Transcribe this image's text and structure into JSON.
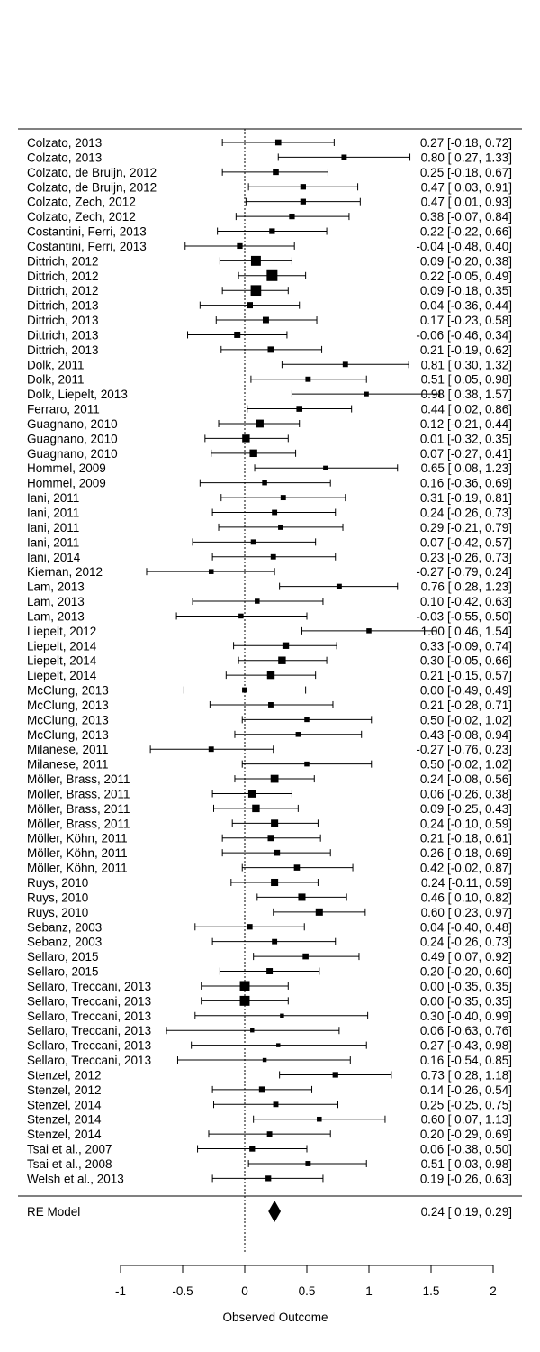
{
  "chart_data": {
    "type": "forest",
    "xlabel": "Observed Outcome",
    "x_ticks": [
      -1,
      -0.5,
      0,
      0.5,
      1,
      1.5,
      2
    ],
    "x_tick_labels": [
      "-1",
      "-0.5",
      "0",
      "0.5",
      "1",
      "1.5",
      "2"
    ],
    "reference_line": 0,
    "studies": [
      {
        "label": "Colzato, 2013",
        "est": 0.27,
        "lo": -0.18,
        "hi": 0.72,
        "ci_text": "0.27 [-0.18, 0.72]",
        "weight": 1.0
      },
      {
        "label": "Colzato, 2013",
        "est": 0.8,
        "lo": 0.27,
        "hi": 1.33,
        "ci_text": "0.80 [ 0.27, 1.33]",
        "weight": 0.8
      },
      {
        "label": "Colzato, de Bruijn, 2012",
        "est": 0.25,
        "lo": -0.18,
        "hi": 0.67,
        "ci_text": "0.25 [-0.18, 0.67]",
        "weight": 1.0
      },
      {
        "label": "Colzato, de Bruijn, 2012",
        "est": 0.47,
        "lo": 0.03,
        "hi": 0.91,
        "ci_text": "0.47 [ 0.03, 0.91]",
        "weight": 0.9
      },
      {
        "label": "Colzato, Zech, 2012",
        "est": 0.47,
        "lo": 0.01,
        "hi": 0.93,
        "ci_text": "0.47 [ 0.01, 0.93]",
        "weight": 0.9
      },
      {
        "label": "Colzato, Zech, 2012",
        "est": 0.38,
        "lo": -0.07,
        "hi": 0.84,
        "ci_text": "0.38 [-0.07, 0.84]",
        "weight": 0.9
      },
      {
        "label": "Costantini, Ferri, 2013",
        "est": 0.22,
        "lo": -0.22,
        "hi": 0.66,
        "ci_text": "0.22 [-0.22, 0.66]",
        "weight": 0.9
      },
      {
        "label": "Costantini, Ferri, 2013",
        "est": -0.04,
        "lo": -0.48,
        "hi": 0.4,
        "ci_text": "-0.04 [-0.48, 0.40]",
        "weight": 0.9
      },
      {
        "label": "Dittrich, 2012",
        "est": 0.09,
        "lo": -0.2,
        "hi": 0.38,
        "ci_text": "0.09 [-0.20, 0.38]",
        "weight": 2.2
      },
      {
        "label": "Dittrich, 2012",
        "est": 0.22,
        "lo": -0.05,
        "hi": 0.49,
        "ci_text": "0.22 [-0.05, 0.49]",
        "weight": 2.5
      },
      {
        "label": "Dittrich, 2012",
        "est": 0.09,
        "lo": -0.18,
        "hi": 0.35,
        "ci_text": "0.09 [-0.18, 0.35]",
        "weight": 2.4
      },
      {
        "label": "Dittrich, 2013",
        "est": 0.04,
        "lo": -0.36,
        "hi": 0.44,
        "ci_text": "0.04 [-0.36, 0.44]",
        "weight": 1.1
      },
      {
        "label": "Dittrich, 2013",
        "est": 0.17,
        "lo": -0.23,
        "hi": 0.58,
        "ci_text": "0.17 [-0.23, 0.58]",
        "weight": 1.1
      },
      {
        "label": "Dittrich, 2013",
        "est": -0.06,
        "lo": -0.46,
        "hi": 0.34,
        "ci_text": "-0.06 [-0.46, 0.34]",
        "weight": 1.1
      },
      {
        "label": "Dittrich, 2013",
        "est": 0.21,
        "lo": -0.19,
        "hi": 0.62,
        "ci_text": "0.21 [-0.19, 0.62]",
        "weight": 1.1
      },
      {
        "label": "Dolk, 2011",
        "est": 0.81,
        "lo": 0.3,
        "hi": 1.32,
        "ci_text": "0.81 [ 0.30, 1.32]",
        "weight": 0.8
      },
      {
        "label": "Dolk, 2011",
        "est": 0.51,
        "lo": 0.05,
        "hi": 0.98,
        "ci_text": "0.51 [ 0.05, 0.98]",
        "weight": 0.8
      },
      {
        "label": "Dolk, Liepelt, 2013",
        "est": 0.98,
        "lo": 0.38,
        "hi": 1.57,
        "ci_text": "0.98 [ 0.38, 1.57]",
        "weight": 0.6
      },
      {
        "label": "Ferraro, 2011",
        "est": 0.44,
        "lo": 0.02,
        "hi": 0.86,
        "ci_text": "0.44 [ 0.02, 0.86]",
        "weight": 1.0
      },
      {
        "label": "Guagnano, 2010",
        "est": 0.12,
        "lo": -0.21,
        "hi": 0.44,
        "ci_text": "0.12 [-0.21, 0.44]",
        "weight": 1.6
      },
      {
        "label": "Guagnano, 2010",
        "est": 0.01,
        "lo": -0.32,
        "hi": 0.35,
        "ci_text": "0.01 [-0.32, 0.35]",
        "weight": 1.5
      },
      {
        "label": "Guagnano, 2010",
        "est": 0.07,
        "lo": -0.27,
        "hi": 0.41,
        "ci_text": "0.07 [-0.27, 0.41]",
        "weight": 1.5
      },
      {
        "label": "Hommel, 2009",
        "est": 0.65,
        "lo": 0.08,
        "hi": 1.23,
        "ci_text": "0.65 [ 0.08, 1.23]",
        "weight": 0.6
      },
      {
        "label": "Hommel, 2009",
        "est": 0.16,
        "lo": -0.36,
        "hi": 0.69,
        "ci_text": "0.16 [-0.36, 0.69]",
        "weight": 0.7
      },
      {
        "label": "Iani, 2011",
        "est": 0.31,
        "lo": -0.19,
        "hi": 0.81,
        "ci_text": "0.31 [-0.19, 0.81]",
        "weight": 0.8
      },
      {
        "label": "Iani, 2011",
        "est": 0.24,
        "lo": -0.26,
        "hi": 0.73,
        "ci_text": "0.24 [-0.26, 0.73]",
        "weight": 0.8
      },
      {
        "label": "Iani, 2011",
        "est": 0.29,
        "lo": -0.21,
        "hi": 0.79,
        "ci_text": "0.29 [-0.21, 0.79]",
        "weight": 0.8
      },
      {
        "label": "Iani, 2011",
        "est": 0.07,
        "lo": -0.42,
        "hi": 0.57,
        "ci_text": "0.07 [-0.42, 0.57]",
        "weight": 0.8
      },
      {
        "label": "Iani, 2014",
        "est": 0.23,
        "lo": -0.26,
        "hi": 0.73,
        "ci_text": "0.23 [-0.26, 0.73]",
        "weight": 0.8
      },
      {
        "label": "Kiernan, 2012",
        "est": -0.27,
        "lo": -0.79,
        "hi": 0.24,
        "ci_text": "-0.27 [-0.79, 0.24]",
        "weight": 0.7
      },
      {
        "label": "Lam, 2013",
        "est": 0.76,
        "lo": 0.28,
        "hi": 1.23,
        "ci_text": "0.76 [ 0.28, 1.23]",
        "weight": 0.8
      },
      {
        "label": "Lam, 2013",
        "est": 0.1,
        "lo": -0.42,
        "hi": 0.63,
        "ci_text": "0.10 [-0.42, 0.63]",
        "weight": 0.7
      },
      {
        "label": "Lam, 2013",
        "est": -0.03,
        "lo": -0.55,
        "hi": 0.5,
        "ci_text": "-0.03 [-0.55, 0.50]",
        "weight": 0.7
      },
      {
        "label": "Liepelt, 2012",
        "est": 1.0,
        "lo": 0.46,
        "hi": 1.54,
        "ci_text": "1.00 [ 0.46, 1.54]",
        "weight": 0.7
      },
      {
        "label": "Liepelt, 2014",
        "est": 0.33,
        "lo": -0.09,
        "hi": 0.74,
        "ci_text": "0.33 [-0.09, 0.74]",
        "weight": 1.2
      },
      {
        "label": "Liepelt, 2014",
        "est": 0.3,
        "lo": -0.05,
        "hi": 0.66,
        "ci_text": "0.30 [-0.05, 0.66]",
        "weight": 1.5
      },
      {
        "label": "Liepelt, 2014",
        "est": 0.21,
        "lo": -0.15,
        "hi": 0.57,
        "ci_text": "0.21 [-0.15, 0.57]",
        "weight": 1.5
      },
      {
        "label": "McClung, 2013",
        "est": 0.0,
        "lo": -0.49,
        "hi": 0.49,
        "ci_text": "0.00 [-0.49, 0.49]",
        "weight": 0.8
      },
      {
        "label": "McClung, 2013",
        "est": 0.21,
        "lo": -0.28,
        "hi": 0.71,
        "ci_text": "0.21 [-0.28, 0.71]",
        "weight": 0.8
      },
      {
        "label": "McClung, 2013",
        "est": 0.5,
        "lo": -0.02,
        "hi": 1.02,
        "ci_text": "0.50 [-0.02, 1.02]",
        "weight": 0.7
      },
      {
        "label": "McClung, 2013",
        "est": 0.43,
        "lo": -0.08,
        "hi": 0.94,
        "ci_text": "0.43 [-0.08, 0.94]",
        "weight": 0.7
      },
      {
        "label": "Milanese, 2011",
        "est": -0.27,
        "lo": -0.76,
        "hi": 0.23,
        "ci_text": "-0.27 [-0.76, 0.23]",
        "weight": 0.8
      },
      {
        "label": "Milanese, 2011",
        "est": 0.5,
        "lo": -0.02,
        "hi": 1.02,
        "ci_text": "0.50 [-0.02, 1.02]",
        "weight": 0.7
      },
      {
        "label": "Möller, Brass, 2011",
        "est": 0.24,
        "lo": -0.08,
        "hi": 0.56,
        "ci_text": "0.24 [-0.08, 0.56]",
        "weight": 1.6
      },
      {
        "label": "Möller, Brass, 2011",
        "est": 0.06,
        "lo": -0.26,
        "hi": 0.38,
        "ci_text": "0.06 [-0.26, 0.38]",
        "weight": 1.6
      },
      {
        "label": "Möller, Brass, 2011",
        "est": 0.09,
        "lo": -0.25,
        "hi": 0.43,
        "ci_text": "0.09 [-0.25, 0.43]",
        "weight": 1.5
      },
      {
        "label": "Möller, Brass, 2011",
        "est": 0.24,
        "lo": -0.1,
        "hi": 0.59,
        "ci_text": "0.24 [-0.10, 0.59]",
        "weight": 1.4
      },
      {
        "label": "Möller, Köhn, 2011",
        "est": 0.21,
        "lo": -0.18,
        "hi": 0.61,
        "ci_text": "0.21 [-0.18, 0.61]",
        "weight": 1.1
      },
      {
        "label": "Möller, Köhn, 2011",
        "est": 0.26,
        "lo": -0.18,
        "hi": 0.69,
        "ci_text": "0.26 [-0.18, 0.69]",
        "weight": 1.0
      },
      {
        "label": "Möller, Köhn, 2011",
        "est": 0.42,
        "lo": -0.02,
        "hi": 0.87,
        "ci_text": "0.42 [-0.02, 0.87]",
        "weight": 1.0
      },
      {
        "label": "Ruys, 2010",
        "est": 0.24,
        "lo": -0.11,
        "hi": 0.59,
        "ci_text": "0.24 [-0.11, 0.59]",
        "weight": 1.4
      },
      {
        "label": "Ruys, 2010",
        "est": 0.46,
        "lo": 0.1,
        "hi": 0.82,
        "ci_text": "0.46 [ 0.10, 0.82]",
        "weight": 1.4
      },
      {
        "label": "Ruys, 2010",
        "est": 0.6,
        "lo": 0.23,
        "hi": 0.97,
        "ci_text": "0.60 [ 0.23, 0.97]",
        "weight": 1.4
      },
      {
        "label": "Sebanz, 2003",
        "est": 0.04,
        "lo": -0.4,
        "hi": 0.48,
        "ci_text": "0.04 [-0.40, 0.48]",
        "weight": 0.9
      },
      {
        "label": "Sebanz, 2003",
        "est": 0.24,
        "lo": -0.26,
        "hi": 0.73,
        "ci_text": "0.24 [-0.26, 0.73]",
        "weight": 0.8
      },
      {
        "label": "Sellaro, 2015",
        "est": 0.49,
        "lo": 0.07,
        "hi": 0.92,
        "ci_text": "0.49 [ 0.07, 0.92]",
        "weight": 1.0
      },
      {
        "label": "Sellaro, 2015",
        "est": 0.2,
        "lo": -0.2,
        "hi": 0.6,
        "ci_text": "0.20 [-0.20, 0.60]",
        "weight": 1.1
      },
      {
        "label": "Sellaro, Treccani, 2013",
        "est": 0.0,
        "lo": -0.35,
        "hi": 0.35,
        "ci_text": "0.00 [-0.35, 0.35]",
        "weight": 2.2
      },
      {
        "label": "Sellaro, Treccani, 2013",
        "est": 0.0,
        "lo": -0.35,
        "hi": 0.35,
        "ci_text": "0.00 [-0.35, 0.35]",
        "weight": 2.2
      },
      {
        "label": "Sellaro, Treccani, 2013",
        "est": 0.3,
        "lo": -0.4,
        "hi": 0.99,
        "ci_text": "0.30 [-0.40, 0.99]",
        "weight": 0.4
      },
      {
        "label": "Sellaro, Treccani, 2013",
        "est": 0.06,
        "lo": -0.63,
        "hi": 0.76,
        "ci_text": "0.06 [-0.63, 0.76]",
        "weight": 0.4
      },
      {
        "label": "Sellaro, Treccani, 2013",
        "est": 0.27,
        "lo": -0.43,
        "hi": 0.98,
        "ci_text": "0.27 [-0.43, 0.98]",
        "weight": 0.4
      },
      {
        "label": "Sellaro, Treccani, 2013",
        "est": 0.16,
        "lo": -0.54,
        "hi": 0.85,
        "ci_text": "0.16 [-0.54, 0.85]",
        "weight": 0.4
      },
      {
        "label": "Stenzel, 2012",
        "est": 0.73,
        "lo": 0.28,
        "hi": 1.18,
        "ci_text": "0.73 [ 0.28, 1.18]",
        "weight": 0.9
      },
      {
        "label": "Stenzel, 2012",
        "est": 0.14,
        "lo": -0.26,
        "hi": 0.54,
        "ci_text": "0.14 [-0.26, 0.54]",
        "weight": 1.1
      },
      {
        "label": "Stenzel, 2014",
        "est": 0.25,
        "lo": -0.25,
        "hi": 0.75,
        "ci_text": "0.25 [-0.25, 0.75]",
        "weight": 0.8
      },
      {
        "label": "Stenzel, 2014",
        "est": 0.6,
        "lo": 0.07,
        "hi": 1.13,
        "ci_text": "0.60 [ 0.07, 1.13]",
        "weight": 0.7
      },
      {
        "label": "Stenzel, 2014",
        "est": 0.2,
        "lo": -0.29,
        "hi": 0.69,
        "ci_text": "0.20 [-0.29, 0.69]",
        "weight": 0.8
      },
      {
        "label": "Tsai et al., 2007",
        "est": 0.06,
        "lo": -0.38,
        "hi": 0.5,
        "ci_text": "0.06 [-0.38, 0.50]",
        "weight": 0.9
      },
      {
        "label": "Tsai et al., 2008",
        "est": 0.51,
        "lo": 0.03,
        "hi": 0.98,
        "ci_text": "0.51 [ 0.03, 0.98]",
        "weight": 0.8
      },
      {
        "label": "Welsh et al., 2013",
        "est": 0.19,
        "lo": -0.26,
        "hi": 0.63,
        "ci_text": "0.19 [-0.26, 0.63]",
        "weight": 0.9
      }
    ],
    "summary": {
      "label": "RE Model",
      "est": 0.24,
      "lo": 0.19,
      "hi": 0.29,
      "ci_text": "0.24 [ 0.19, 0.29]"
    }
  }
}
